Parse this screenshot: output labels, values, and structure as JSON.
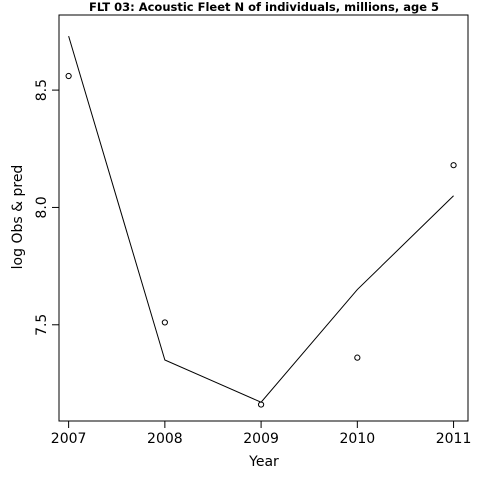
{
  "chart_data": {
    "type": "scatter",
    "title": "FLT 03: Acoustic Fleet  N of individuals, millions, age 5",
    "xlabel": "Year",
    "ylabel": "log Obs & pred",
    "xlim": [
      2006.9,
      2011.15
    ],
    "ylim": [
      7.09,
      8.82
    ],
    "xticks": [
      2007,
      2008,
      2009,
      2010,
      2011
    ],
    "yticks": [
      7.5,
      8.0,
      8.5
    ],
    "xtick_labels": [
      "2007",
      "2008",
      "2009",
      "2010",
      "2011"
    ],
    "ytick_labels": [
      "7.5",
      "8.0",
      "8.5"
    ],
    "grid": false,
    "series": [
      {
        "type": "scatter",
        "marker": "open-circle",
        "x": [
          2007,
          2008,
          2009,
          2010,
          2011
        ],
        "y": [
          8.56,
          7.51,
          7.16,
          7.36,
          8.18
        ]
      },
      {
        "type": "line",
        "x": [
          2007,
          2008,
          2009,
          2010,
          2011
        ],
        "y": [
          8.73,
          7.35,
          7.17,
          7.65,
          8.05
        ]
      }
    ]
  }
}
